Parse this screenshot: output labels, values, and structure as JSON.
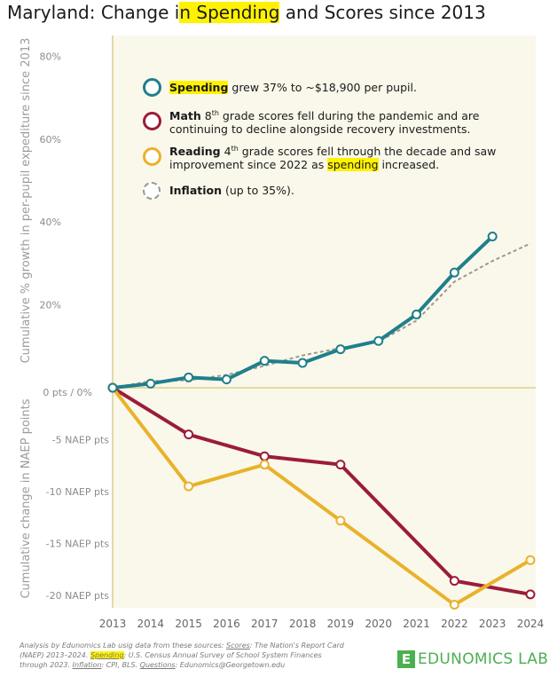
{
  "title": {
    "prefix": "Maryland: Change i",
    "mid": "n ",
    "highlight": "Spending",
    "suffix": " and Scores since 2013"
  },
  "colors": {
    "spending": "#1f7f8c",
    "math": "#9b1c3a",
    "reading": "#e8b22b",
    "inflation": "#999999",
    "background": "#faf8ea",
    "axis": "#d9cf8a",
    "highlight": "#fff200"
  },
  "legend": {
    "spending": {
      "bold": "Spending",
      "text": " grew 37% to ~$18,900 per pupil."
    },
    "math": {
      "bold": "Math",
      "sup": "th",
      "grade": " 8",
      "text_line1": " grade scores fell during the pandemic and are",
      "text_line2": "continuing to decline alongside recovery investments."
    },
    "reading": {
      "bold": "Reading",
      "grade": " 4",
      "sup": "th",
      "text_line1": " grade scores fell through the decade and saw",
      "text_line2_a": "improvement since 2022 as ",
      "text_line2_hl": "spending",
      "text_line2_b": " increased."
    },
    "inflation": {
      "bold": "Inflation",
      "text": " (up to 35%)."
    }
  },
  "y_titles": {
    "top": "Cumulative % growth in per-pupil expediture since 2013",
    "bottom": "Cumulative change in NAEP points"
  },
  "footer": {
    "line1": "Analysis by Edunomics Lab usig data from these sources: ",
    "scores_label": "Scores",
    "scores_text": ": The Nation's Report Card (NAEP) 2013–2024. ",
    "spending_label": "Spending",
    "spending_text": ": U.S. Census Annual Survey of School System Finances through 2023. ",
    "inflation_label": "Inflation",
    "inflation_text": ": CPI, BLS. ",
    "questions_label": "Questions",
    "questions_text": ": Edunomics@Georgetown.edu"
  },
  "logo": {
    "mark": "E",
    "text": "EDUNOMICS LAB"
  },
  "chart_data": {
    "type": "line",
    "x": [
      2013,
      2014,
      2015,
      2016,
      2017,
      2018,
      2019,
      2020,
      2021,
      2022,
      2023,
      2024
    ],
    "x_tick_labels": [
      "2013",
      "2014",
      "2015",
      "2016",
      "2017",
      "2018",
      "2019",
      "2020",
      "2021",
      "2022",
      "2023",
      "2024"
    ],
    "upper_panel": {
      "y_tick_labels": [
        "80%",
        "60%",
        "40%",
        "20%"
      ],
      "y_tick_values": [
        80,
        60,
        40,
        20
      ],
      "series": [
        {
          "name": "Spending",
          "x": [
            2013,
            2014,
            2015,
            2016,
            2017,
            2018,
            2019,
            2020,
            2021,
            2022,
            2023
          ],
          "values": [
            0,
            1,
            2.5,
            2,
            6.5,
            6,
            9.3,
            11.3,
            17.7,
            27.8,
            36.5
          ]
        },
        {
          "name": "Inflation",
          "x": [
            2013,
            2014,
            2015,
            2016,
            2017,
            2018,
            2019,
            2020,
            2021,
            2022,
            2023,
            2024
          ],
          "values": [
            0,
            1.6,
            1.8,
            3.1,
            5.3,
            7.8,
            9.6,
            11.1,
            16.2,
            25.6,
            30.6,
            34.8
          ]
        }
      ]
    },
    "zero_label": "0 pts / 0%",
    "lower_panel": {
      "y_tick_labels": [
        "-5 NAEP pts",
        "-10 NAEP pts",
        "-15 NAEP pts",
        "-20 NAEP pts"
      ],
      "y_tick_values": [
        -5,
        -10,
        -15,
        -20
      ],
      "series": [
        {
          "name": "Math",
          "x": [
            2013,
            2015,
            2017,
            2019,
            2022,
            2024
          ],
          "values": [
            0,
            -4.5,
            -6.6,
            -7.4,
            -18.6,
            -19.9
          ]
        },
        {
          "name": "Reading",
          "x": [
            2013,
            2015,
            2017,
            2019,
            2022,
            2024
          ],
          "values": [
            0,
            -9.5,
            -7.4,
            -12.8,
            -20.9,
            -16.6
          ]
        }
      ]
    }
  }
}
